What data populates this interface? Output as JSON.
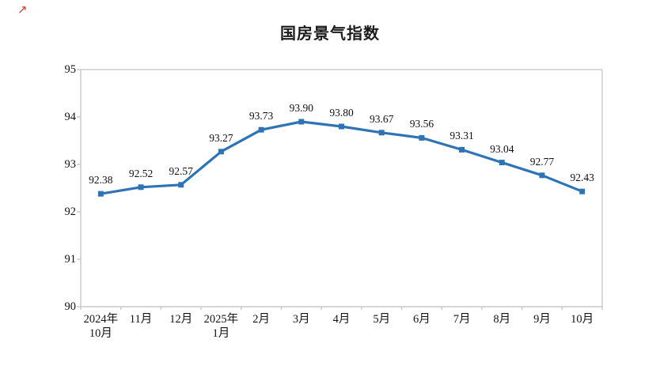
{
  "header": {
    "corner_mark": "↗"
  },
  "chart_data": {
    "type": "line",
    "title": "国房景气指数",
    "categories": [
      "2024年\n10月",
      "11月",
      "12月",
      "2025年\n1月",
      "2月",
      "3月",
      "4月",
      "5月",
      "6月",
      "7月",
      "8月",
      "9月",
      "10月"
    ],
    "values": [
      92.38,
      92.52,
      92.57,
      93.27,
      93.73,
      93.9,
      93.8,
      93.67,
      93.56,
      93.31,
      93.04,
      92.77,
      92.43
    ],
    "data_labels": [
      "92.38",
      "92.52",
      "92.57",
      "93.27",
      "93.73",
      "93.90",
      "93.80",
      "93.67",
      "93.56",
      "93.31",
      "93.04",
      "92.77",
      "92.43"
    ],
    "xlabel": "",
    "ylabel": "",
    "ylim": [
      90,
      95
    ],
    "yticks": [
      90,
      91,
      92,
      93,
      94,
      95
    ],
    "grid": false,
    "legend": null,
    "marker": "square",
    "line_color": "#2E74B5",
    "axis_color": "#C8C8C8",
    "border_color": "#D9D9D9",
    "text_color": "#111111"
  }
}
